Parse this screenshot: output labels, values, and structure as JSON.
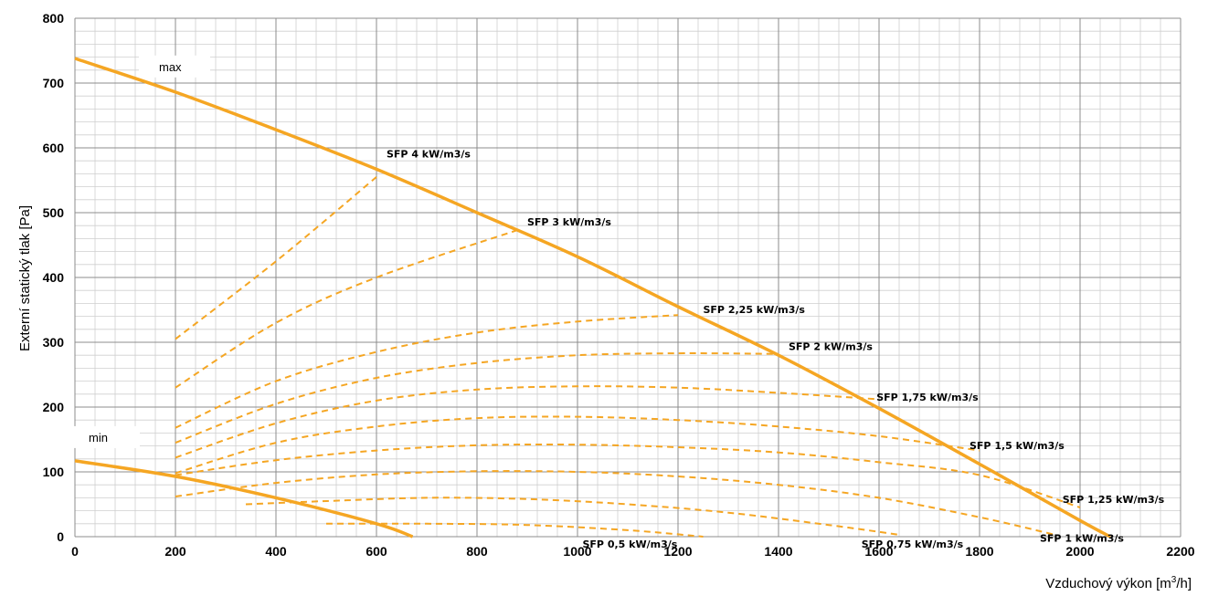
{
  "chart_data": {
    "type": "line",
    "xlabel": "Vzduchový výkon [m",
    "xlabel_sup": "3",
    "xlabel_end": "/h]",
    "ylabel": "Externí statický tlak [Pa]",
    "xlim": [
      0,
      2200
    ],
    "ylim": [
      0,
      800
    ],
    "x_ticks": [
      "0",
      "200",
      "400",
      "600",
      "800",
      "1000",
      "1200",
      "1400",
      "1600",
      "1800",
      "2000",
      "2200"
    ],
    "y_ticks": [
      "0",
      "100",
      "200",
      "300",
      "400",
      "500",
      "600",
      "700",
      "800"
    ],
    "grid": true,
    "color": "#F5A623",
    "boundary_series": [
      {
        "name": "max",
        "label_x": 200,
        "label_y": 720,
        "x": [
          0,
          200,
          400,
          600,
          800,
          1000,
          1200,
          1400,
          1600,
          1800,
          2000,
          2060
        ],
        "y": [
          738,
          686,
          628,
          567,
          500,
          432,
          355,
          280,
          198,
          112,
          25,
          0
        ]
      },
      {
        "name": "min",
        "label_x": 60,
        "label_y": 148,
        "x": [
          0,
          200,
          400,
          600,
          672
        ],
        "y": [
          117,
          93,
          60,
          20,
          0
        ]
      }
    ],
    "sfp_series": [
      {
        "name": "SFP 4 kW/m3/s",
        "label_x": 620,
        "label_y": 585,
        "x": [
          200,
          400,
          600
        ],
        "y": [
          305,
          425,
          555
        ]
      },
      {
        "name": "SFP 3 kW/m3/s",
        "label_x": 900,
        "label_y": 480,
        "x": [
          200,
          400,
          600,
          880
        ],
        "y": [
          230,
          330,
          400,
          473
        ]
      },
      {
        "name": "SFP 2,25 kW/m3/s",
        "label_x": 1250,
        "label_y": 345,
        "x": [
          200,
          400,
          600,
          800,
          1000,
          1200
        ],
        "y": [
          168,
          240,
          285,
          315,
          332,
          342
        ]
      },
      {
        "name": "SFP 2 kW/m3/s",
        "label_x": 1420,
        "label_y": 288,
        "x": [
          200,
          400,
          600,
          800,
          1000,
          1200,
          1400
        ],
        "y": [
          145,
          205,
          245,
          268,
          280,
          283,
          282
        ]
      },
      {
        "name": "SFP 1,75 kW/m3/s",
        "label_x": 1595,
        "label_y": 210,
        "x": [
          200,
          400,
          600,
          800,
          1000,
          1200,
          1400,
          1600
        ],
        "y": [
          122,
          175,
          210,
          227,
          232,
          230,
          222,
          212
        ]
      },
      {
        "name": "SFP 1,5 kW/m3/s",
        "label_x": 1780,
        "label_y": 135,
        "x": [
          200,
          400,
          600,
          800,
          1000,
          1200,
          1400,
          1600,
          1800
        ],
        "y": [
          98,
          145,
          170,
          183,
          185,
          180,
          170,
          155,
          133
        ]
      },
      {
        "name": "SFP 1,25 kW/m3/s",
        "label_x": 1965,
        "label_y": 52,
        "x": [
          200,
          400,
          600,
          800,
          1000,
          1200,
          1400,
          1600,
          1800,
          2000
        ],
        "y": [
          95,
          118,
          133,
          141,
          142,
          138,
          130,
          115,
          95,
          45
        ]
      },
      {
        "name": "SFP 1 kW/m3/s",
        "label_x": 1920,
        "label_y": -8,
        "x": [
          200,
          400,
          600,
          800,
          1000,
          1200,
          1400,
          1600,
          1800,
          1950
        ],
        "y": [
          62,
          83,
          96,
          101,
          100,
          93,
          80,
          60,
          30,
          3
        ]
      },
      {
        "name": "SFP 0,75 kW/m3/s",
        "label_x": 1565,
        "label_y": -17,
        "x": [
          340,
          500,
          700,
          900,
          1100,
          1300,
          1500,
          1640
        ],
        "y": [
          50,
          55,
          60,
          58,
          50,
          37,
          18,
          3
        ]
      },
      {
        "name": "SFP 0,5 kW/m3/s",
        "label_x": 1010,
        "label_y": -17,
        "x": [
          500,
          700,
          900,
          1100,
          1250
        ],
        "y": [
          20,
          20,
          18,
          10,
          0
        ]
      }
    ]
  }
}
